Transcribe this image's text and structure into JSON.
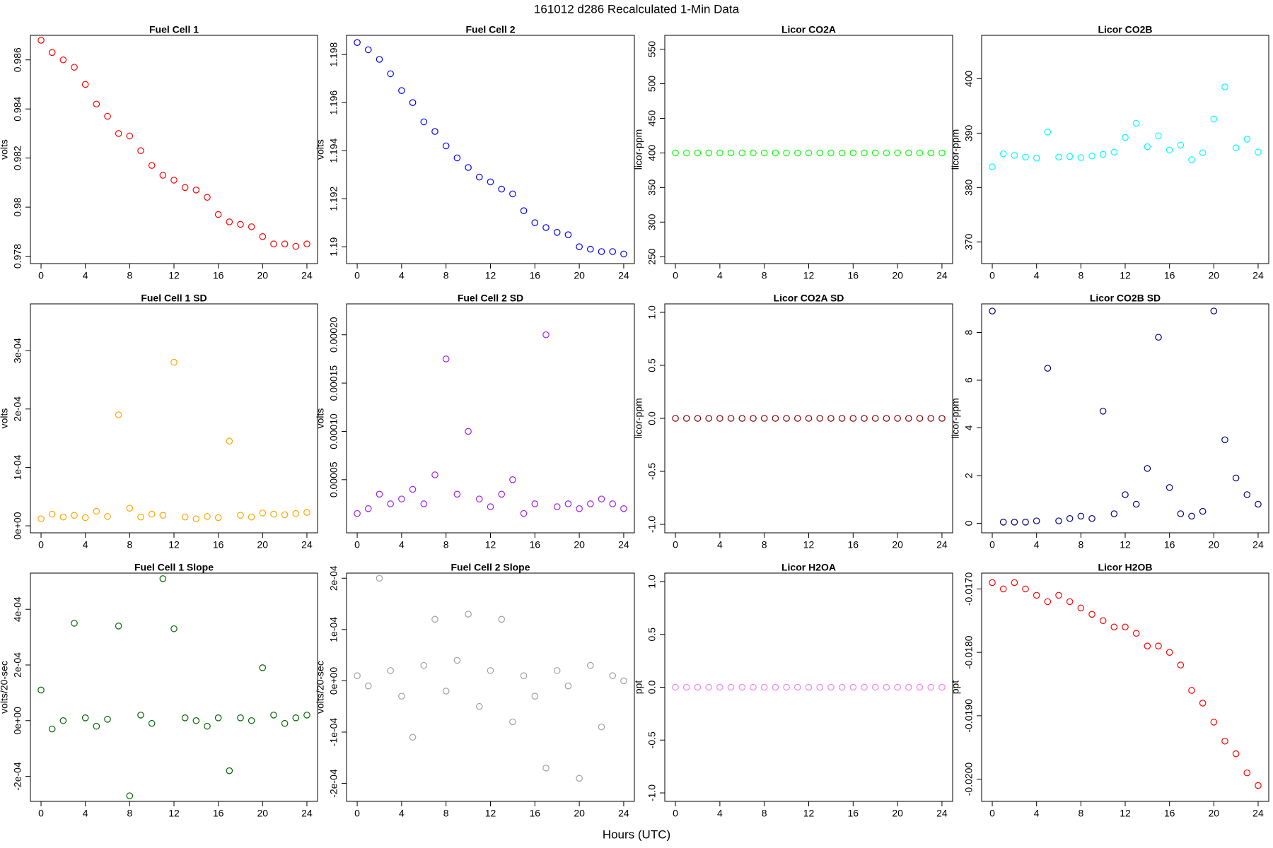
{
  "title": "161012   d286   Recalculated 1-Min Data",
  "x_label": "Hours (UTC)",
  "chart_data": [
    {
      "type": "scatter",
      "title": "Fuel Cell 1",
      "y_label": "volts",
      "color": "#ff0000",
      "x": [
        0,
        1,
        2,
        3,
        4,
        5,
        6,
        7,
        8,
        9,
        10,
        11,
        12,
        13,
        14,
        15,
        16,
        17,
        18,
        19,
        20,
        21,
        22,
        23,
        24
      ],
      "values": [
        0.9868,
        0.9863,
        0.986,
        0.9857,
        0.985,
        0.9842,
        0.9837,
        0.983,
        0.9829,
        0.9823,
        0.9817,
        0.9813,
        0.9811,
        0.9808,
        0.9807,
        0.9804,
        0.9797,
        0.9794,
        0.9793,
        0.9792,
        0.9788,
        0.9785,
        0.9785,
        0.9784,
        0.9785
      ],
      "xlim": [
        -0.96,
        24.96
      ],
      "xticks": [
        0,
        4,
        8,
        12,
        16,
        20,
        24
      ],
      "ylim": [
        0.9777,
        0.987
      ],
      "yticks": [
        0.978,
        0.98,
        0.982,
        0.984,
        0.986
      ]
    },
    {
      "type": "scatter",
      "title": "Fuel Cell 2",
      "y_label": "volts",
      "color": "#0000ff",
      "x": [
        0,
        1,
        2,
        3,
        4,
        5,
        6,
        7,
        8,
        9,
        10,
        11,
        12,
        13,
        14,
        15,
        16,
        17,
        18,
        19,
        20,
        21,
        22,
        23,
        24
      ],
      "values": [
        1.1985,
        1.1982,
        1.1978,
        1.1972,
        1.1965,
        1.196,
        1.1952,
        1.1948,
        1.1942,
        1.1937,
        1.1933,
        1.1929,
        1.1927,
        1.1924,
        1.1922,
        1.1915,
        1.191,
        1.1908,
        1.1906,
        1.1905,
        1.19,
        1.1899,
        1.1898,
        1.1898,
        1.1897
      ],
      "xlim": [
        -0.96,
        24.96
      ],
      "xticks": [
        0,
        4,
        8,
        12,
        16,
        20,
        24
      ],
      "ylim": [
        1.1893,
        1.1988
      ],
      "yticks": [
        1.19,
        1.192,
        1.194,
        1.196,
        1.198
      ]
    },
    {
      "type": "scatter",
      "title": "Licor CO2A",
      "y_label": "licor-ppm",
      "color": "#00ff00",
      "x": [
        0,
        1,
        2,
        3,
        4,
        5,
        6,
        7,
        8,
        9,
        10,
        11,
        12,
        13,
        14,
        15,
        16,
        17,
        18,
        19,
        20,
        21,
        22,
        23,
        24
      ],
      "values": [
        400,
        400,
        400,
        400,
        400,
        400,
        400,
        400,
        400,
        400,
        400,
        400,
        400,
        400,
        400,
        400,
        400,
        400,
        400,
        400,
        400,
        400,
        400,
        400,
        400
      ],
      "xlim": [
        -0.96,
        24.96
      ],
      "xticks": [
        0,
        4,
        8,
        12,
        16,
        20,
        24
      ],
      "ylim": [
        240,
        570
      ],
      "yticks": [
        250,
        300,
        350,
        400,
        450,
        500,
        550
      ]
    },
    {
      "type": "scatter",
      "title": "Licor CO2B",
      "y_label": "licor-ppm",
      "color": "#00ffff",
      "x": [
        0,
        1,
        2,
        3,
        4,
        5,
        6,
        7,
        8,
        9,
        10,
        11,
        12,
        13,
        14,
        15,
        16,
        17,
        18,
        19,
        20,
        21,
        22,
        23,
        24
      ],
      "values": [
        383.8,
        386.2,
        385.9,
        385.6,
        385.4,
        390.2,
        385.6,
        385.7,
        385.5,
        385.8,
        386.1,
        386.5,
        389.2,
        391.8,
        387.5,
        389.5,
        386.9,
        387.8,
        385.1,
        386.4,
        392.6,
        398.5,
        387.3,
        388.9,
        386.5
      ],
      "xlim": [
        -0.96,
        24.96
      ],
      "xticks": [
        0,
        4,
        8,
        12,
        16,
        20,
        24
      ],
      "ylim": [
        366,
        408
      ],
      "yticks": [
        370,
        380,
        390,
        400
      ]
    },
    {
      "type": "scatter",
      "title": "Fuel Cell 1 SD",
      "y_label": "volts",
      "color": "#ffa500",
      "x": [
        0,
        1,
        2,
        3,
        4,
        5,
        6,
        7,
        8,
        9,
        10,
        11,
        12,
        13,
        14,
        15,
        16,
        17,
        18,
        19,
        20,
        21,
        22,
        23,
        24
      ],
      "values": [
        1.2e-05,
        2e-05,
        1.5e-05,
        1.8e-05,
        1.4e-05,
        2.5e-05,
        1.6e-05,
        0.00019,
        3e-05,
        1.5e-05,
        2e-05,
        1.8e-05,
        0.00028,
        1.5e-05,
        1.2e-05,
        1.6e-05,
        1.4e-05,
        0.000145,
        1.8e-05,
        1.5e-05,
        2.2e-05,
        2e-05,
        1.9e-05,
        2.1e-05,
        2.3e-05
      ],
      "xlim": [
        -0.96,
        24.96
      ],
      "xticks": [
        0,
        4,
        8,
        12,
        16,
        20,
        24
      ],
      "ylim": [
        -1.2e-05,
        0.00038
      ],
      "yticks": [
        {
          "value": 0,
          "label": "0e+00"
        },
        {
          "value": 0.0001,
          "label": "1e-04"
        },
        {
          "value": 0.0002,
          "label": "2e-04"
        },
        {
          "value": 0.0003,
          "label": "3e-04"
        }
      ]
    },
    {
      "type": "scatter",
      "title": "Fuel Cell 2 SD",
      "y_label": "volts",
      "color": "#a020f0",
      "x": [
        0,
        1,
        2,
        3,
        4,
        5,
        6,
        7,
        8,
        9,
        10,
        11,
        12,
        13,
        14,
        15,
        16,
        17,
        18,
        19,
        20,
        21,
        22,
        23,
        24
      ],
      "values": [
        1.5e-05,
        2e-05,
        3.5e-05,
        2.5e-05,
        3e-05,
        4e-05,
        2.5e-05,
        5.5e-05,
        0.000175,
        3.5e-05,
        0.0001,
        3e-05,
        2.2e-05,
        3.5e-05,
        5e-05,
        1.5e-05,
        2.5e-05,
        0.0002,
        2.2e-05,
        2.5e-05,
        2e-05,
        2.5e-05,
        3e-05,
        2.5e-05,
        2e-05
      ],
      "xlim": [
        -0.96,
        24.96
      ],
      "xticks": [
        0,
        4,
        8,
        12,
        16,
        20,
        24
      ],
      "ylim": [
        -5e-06,
        0.000232
      ],
      "yticks": [
        5e-05,
        {
          "value": 0.0001,
          "label": "0.00010"
        },
        0.00015,
        {
          "value": 0.0002,
          "label": "0.00020"
        }
      ]
    },
    {
      "type": "scatter",
      "title": "Licor CO2A SD",
      "y_label": "licor-ppm",
      "color": "#8b0000",
      "x": [
        0,
        1,
        2,
        3,
        4,
        5,
        6,
        7,
        8,
        9,
        10,
        11,
        12,
        13,
        14,
        15,
        16,
        17,
        18,
        19,
        20,
        21,
        22,
        23,
        24
      ],
      "values": [
        0,
        0,
        0,
        0,
        0,
        0,
        0,
        0,
        0,
        0,
        0,
        0,
        0,
        0,
        0,
        0,
        0,
        0,
        0,
        0,
        0,
        0,
        0,
        0,
        0
      ],
      "xlim": [
        -0.96,
        24.96
      ],
      "xticks": [
        0,
        4,
        8,
        12,
        16,
        20,
        24
      ],
      "ylim": [
        -1.08,
        1.08
      ],
      "yticks": [
        {
          "value": -1,
          "label": "-1.0"
        },
        -0.5,
        {
          "value": 0,
          "label": "0.0"
        },
        0.5,
        {
          "value": 1,
          "label": "1.0"
        }
      ]
    },
    {
      "type": "scatter",
      "title": "Licor CO2B SD",
      "y_label": "licor-ppm",
      "color": "#000080",
      "x": [
        0,
        1,
        2,
        3,
        4,
        5,
        6,
        7,
        8,
        9,
        10,
        11,
        12,
        13,
        14,
        15,
        16,
        17,
        18,
        19,
        20,
        21,
        22,
        23,
        24
      ],
      "values": [
        8.9,
        0.05,
        0.05,
        0.05,
        0.1,
        6.5,
        0.1,
        0.2,
        0.3,
        0.2,
        4.7,
        0.4,
        1.2,
        0.8,
        2.3,
        7.8,
        1.5,
        0.4,
        0.3,
        0.5,
        8.9,
        3.5,
        1.9,
        1.2,
        0.8
      ],
      "xlim": [
        -0.96,
        24.96
      ],
      "xticks": [
        0,
        4,
        8,
        12,
        16,
        20,
        24
      ],
      "ylim": [
        -0.4,
        9.2
      ],
      "yticks": [
        0,
        2,
        4,
        6,
        8
      ]
    },
    {
      "type": "scatter",
      "title": "Fuel Cell 1 Slope",
      "y_label": "volts/20-sec",
      "color": "#006400",
      "x": [
        0,
        1,
        2,
        3,
        4,
        5,
        6,
        7,
        8,
        9,
        10,
        11,
        12,
        13,
        14,
        15,
        16,
        17,
        18,
        19,
        20,
        21,
        22,
        23,
        24
      ],
      "values": [
        0.00011,
        -3e-05,
        0,
        0.00035,
        1e-05,
        -2e-05,
        5e-06,
        0.00034,
        -0.00027,
        2e-05,
        -1e-05,
        0.00051,
        0.00033,
        1e-05,
        0,
        -2e-05,
        1e-05,
        -0.00018,
        1e-05,
        0,
        0.00019,
        2e-05,
        -1e-05,
        1e-05,
        2e-05
      ],
      "xlim": [
        -0.96,
        24.96
      ],
      "xticks": [
        0,
        4,
        8,
        12,
        16,
        20,
        24
      ],
      "ylim": [
        -0.00029,
        0.00053
      ],
      "yticks": [
        {
          "value": -0.0002,
          "label": "-2e-04"
        },
        {
          "value": 0,
          "label": "0e+00"
        },
        {
          "value": 0.0002,
          "label": "2e-04"
        },
        {
          "value": 0.0004,
          "label": "4e-04"
        }
      ]
    },
    {
      "type": "scatter",
      "title": "Fuel Cell 2 Slope",
      "y_label": "volts/20-sec",
      "color": "#a0a0a0",
      "x": [
        0,
        1,
        2,
        3,
        4,
        5,
        6,
        7,
        8,
        9,
        10,
        11,
        12,
        13,
        14,
        15,
        16,
        17,
        18,
        19,
        20,
        21,
        22,
        23,
        24
      ],
      "values": [
        1e-05,
        -1e-05,
        0.0002,
        2e-05,
        -3e-05,
        -0.00011,
        3e-05,
        0.00012,
        -2e-05,
        4e-05,
        0.00013,
        -5e-05,
        2e-05,
        0.00012,
        -8e-05,
        1e-05,
        -3e-05,
        -0.00017,
        2e-05,
        -1e-05,
        -0.00019,
        3e-05,
        -9e-05,
        1e-05,
        0
      ],
      "xlim": [
        -0.96,
        24.96
      ],
      "xticks": [
        0,
        4,
        8,
        12,
        16,
        20,
        24
      ],
      "ylim": [
        -0.000235,
        0.00021
      ],
      "yticks": [
        {
          "value": -0.0002,
          "label": "-2e-04"
        },
        {
          "value": -0.0001,
          "label": "-1e-04"
        },
        {
          "value": 0,
          "label": "0e+00"
        },
        {
          "value": 0.0001,
          "label": "1e-04"
        },
        {
          "value": 0.0002,
          "label": "2e-04"
        }
      ]
    },
    {
      "type": "scatter",
      "title": "Licor H2OA",
      "y_label": "ppt",
      "color": "#ee82ee",
      "x": [
        0,
        1,
        2,
        3,
        4,
        5,
        6,
        7,
        8,
        9,
        10,
        11,
        12,
        13,
        14,
        15,
        16,
        17,
        18,
        19,
        20,
        21,
        22,
        23,
        24
      ],
      "values": [
        0,
        0,
        0,
        0,
        0,
        0,
        0,
        0,
        0,
        0,
        0,
        0,
        0,
        0,
        0,
        0,
        0,
        0,
        0,
        0,
        0,
        0,
        0,
        0,
        0
      ],
      "xlim": [
        -0.96,
        24.96
      ],
      "xticks": [
        0,
        4,
        8,
        12,
        16,
        20,
        24
      ],
      "ylim": [
        -1.08,
        1.08
      ],
      "yticks": [
        {
          "value": -1,
          "label": "-1.0"
        },
        -0.5,
        {
          "value": 0,
          "label": "0.0"
        },
        0.5,
        {
          "value": 1,
          "label": "1.0"
        }
      ]
    },
    {
      "type": "scatter",
      "title": "Licor H2OB",
      "y_label": "ppt",
      "color": "#ff0000",
      "x": [
        0,
        1,
        2,
        3,
        4,
        5,
        6,
        7,
        8,
        9,
        10,
        11,
        12,
        13,
        14,
        15,
        16,
        17,
        18,
        19,
        20,
        21,
        22,
        23,
        24
      ],
      "values": [
        -0.0169,
        -0.017,
        -0.0169,
        -0.017,
        -0.0171,
        -0.0172,
        -0.0171,
        -0.0172,
        -0.0173,
        -0.0174,
        -0.0175,
        -0.0176,
        -0.0176,
        -0.0177,
        -0.0179,
        -0.0179,
        -0.018,
        -0.0182,
        -0.0186,
        -0.0188,
        -0.0191,
        -0.0194,
        -0.0196,
        -0.0199,
        -0.0201
      ],
      "xlim": [
        -0.96,
        24.96
      ],
      "xticks": [
        0,
        4,
        8,
        12,
        16,
        20,
        24
      ],
      "ylim": [
        -0.02035,
        -0.01675
      ],
      "yticks": [
        {
          "value": -0.02,
          "label": "-0.0200"
        },
        {
          "value": -0.019,
          "label": "-0.0190"
        },
        {
          "value": -0.018,
          "label": "-0.0180"
        },
        {
          "value": -0.017,
          "label": "-0.0170"
        }
      ]
    }
  ]
}
